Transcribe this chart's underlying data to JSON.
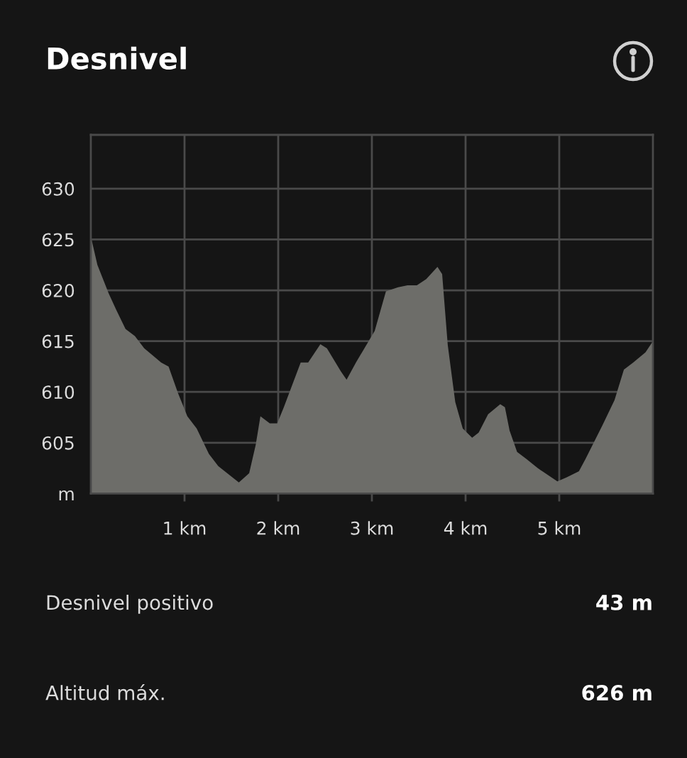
{
  "chart_data": {
    "type": "area",
    "title": "Desnivel",
    "x": [
      0,
      0.07,
      0.19,
      0.27,
      0.37,
      0.47,
      0.57,
      0.75,
      0.83,
      0.93,
      1.03,
      1.13,
      1.26,
      1.36,
      1.58,
      1.69,
      1.76,
      1.81,
      1.91,
      1.99,
      2.06,
      2.24,
      2.32,
      2.45,
      2.52,
      2.67,
      2.73,
      2.83,
      3.03,
      3.15,
      3.28,
      3.38,
      3.48,
      3.58,
      3.7,
      3.75,
      3.81,
      3.89,
      3.97,
      4.07,
      4.14,
      4.24,
      4.37,
      4.42,
      4.47,
      4.55,
      4.65,
      4.77,
      4.98,
      5.08,
      5.21,
      5.28,
      5.46,
      5.59,
      5.69,
      5.79,
      5.92,
      6.0
    ],
    "series": [
      {
        "color": "#6d6d69",
        "values": [
          625.3,
          622.5,
          619.7,
          618.1,
          616.2,
          615.5,
          614.3,
          612.9,
          612.5,
          609.9,
          607.6,
          606.4,
          603.9,
          602.7,
          601.1,
          602.0,
          604.8,
          607.6,
          606.9,
          606.9,
          608.5,
          612.9,
          612.9,
          614.7,
          614.3,
          612.0,
          611.2,
          612.9,
          616.0,
          619.9,
          620.3,
          620.5,
          620.5,
          621.1,
          622.3,
          621.6,
          614.6,
          609.0,
          606.4,
          605.5,
          606.0,
          607.8,
          608.8,
          608.5,
          606.2,
          604.1,
          603.4,
          602.5,
          601.2,
          601.6,
          602.2,
          603.4,
          606.7,
          609.2,
          612.2,
          612.9,
          613.9,
          615.0
        ]
      }
    ],
    "xlim": [
      0,
      6.0
    ],
    "ylim": [
      600,
      635.3
    ],
    "xticks": [
      {
        "value": 1,
        "label": "1 km"
      },
      {
        "value": 2,
        "label": "2 km"
      },
      {
        "value": 3,
        "label": "3 km"
      },
      {
        "value": 4,
        "label": "4 km"
      },
      {
        "value": 5,
        "label": "5 km"
      }
    ],
    "yticks": [
      {
        "value": 600,
        "label": "m"
      },
      605,
      610,
      615,
      620,
      625,
      630
    ],
    "grid": true,
    "annotations": [
      "Desnivel positivo",
      "43 m",
      "Altitud máx.",
      "626 m"
    ]
  }
}
